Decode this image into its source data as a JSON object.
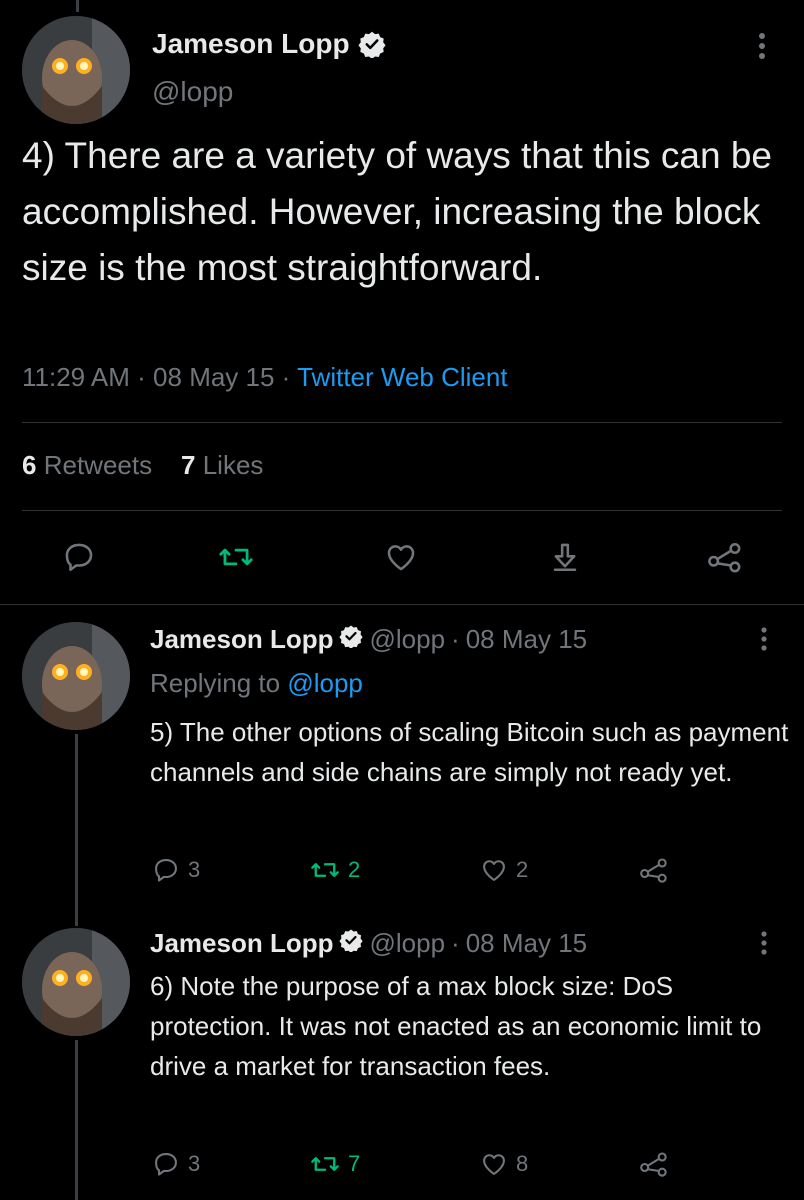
{
  "main_tweet": {
    "author_name": "Jameson Lopp",
    "handle": "@lopp",
    "text": "4) There are a variety of ways that this can be accomplished. However, increasing the block size is the most straightforward.",
    "time": "11:29 AM",
    "date": "08 May 15",
    "client": "Twitter Web Client",
    "separator": " · ",
    "retweets_count": "6",
    "retweets_label": "Retweets",
    "likes_count": "7",
    "likes_label": "Likes"
  },
  "replies": [
    {
      "author_name": "Jameson Lopp",
      "handle": "@lopp",
      "date": "08 May 15",
      "replying_to_label": "Replying to",
      "replying_to_handle": "@lopp",
      "text": "5) The other options of scaling Bitcoin such as payment channels and side chains are simply not ready yet.",
      "reply_count": "3",
      "retweet_count": "2",
      "like_count": "2"
    },
    {
      "author_name": "Jameson Lopp",
      "handle": "@lopp",
      "date": "08 May 15",
      "text": "6) Note the purpose of a max block size: DoS protection. It was not enacted as an economic limit to drive a market for transaction fees.",
      "reply_count": "3",
      "retweet_count": "7",
      "like_count": "8"
    }
  ],
  "colors": {
    "background": "#000000",
    "text": "#e7e9ea",
    "muted": "#71767b",
    "link": "#1d9bf0",
    "retweet_green": "#00ba7c",
    "verified_badge": "#e7e9ea"
  },
  "icons": [
    "verified-badge-icon",
    "more-options-icon",
    "reply-icon",
    "retweet-icon",
    "like-icon",
    "bookmark-icon",
    "share-icon"
  ]
}
